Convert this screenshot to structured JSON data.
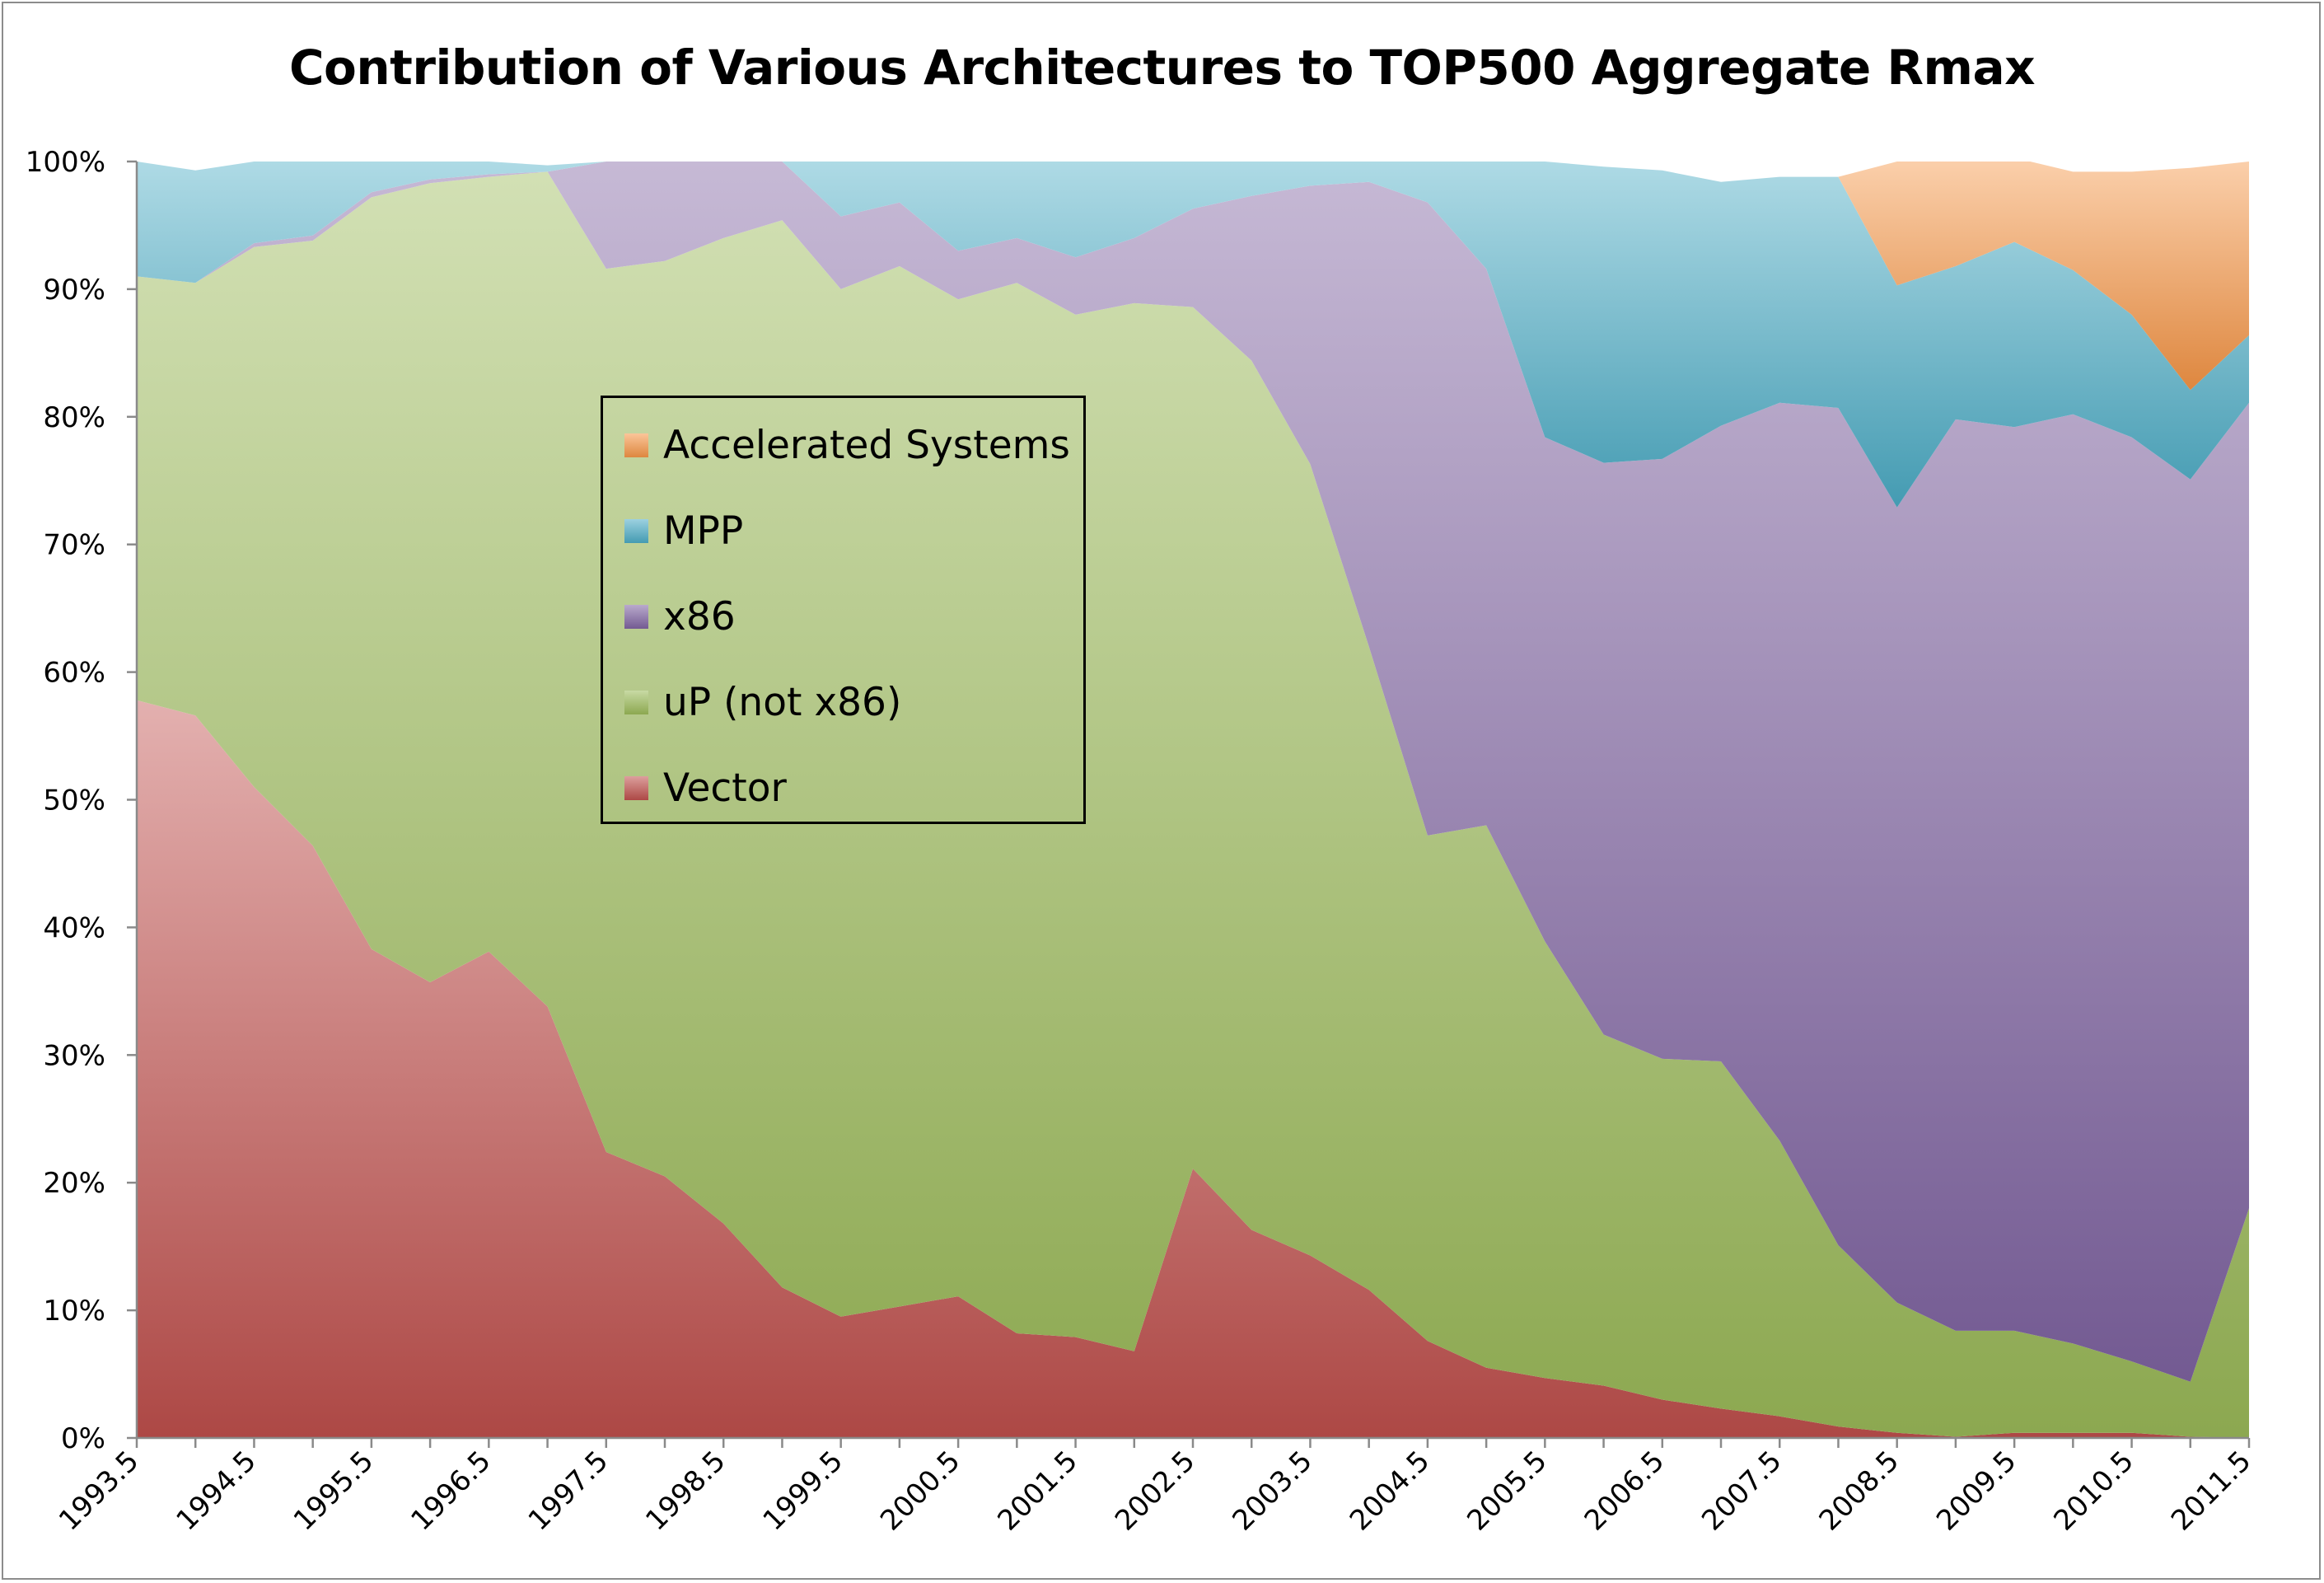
{
  "title": "Contribution of Various Architectures to TOP500 Aggregate Rmax",
  "chart_data": {
    "type": "area",
    "stacked": true,
    "title": "Contribution of Various Architectures to TOP500 Aggregate Rmax",
    "xlabel": "",
    "ylabel": "",
    "ylim": [
      0,
      100
    ],
    "y_unit": "%",
    "grid": false,
    "legend_position": "center-left inside plot",
    "x": [
      1993.5,
      1994,
      1994.5,
      1995,
      1995.5,
      1996,
      1996.5,
      1997,
      1997.5,
      1998,
      1998.5,
      1999,
      1999.5,
      2000,
      2000.5,
      2001,
      2001.5,
      2002,
      2002.5,
      2003,
      2003.5,
      2004,
      2004.5,
      2005,
      2005.5,
      2006,
      2006.5,
      2007,
      2007.5,
      2008,
      2008.5,
      2009,
      2009.5,
      2010,
      2010.5,
      2011,
      2011.5
    ],
    "x_tick_labels": [
      "1993.5",
      "1994.5",
      "1995.5",
      "1996.5",
      "1997.5",
      "1998.5",
      "1999.5",
      "2000.5",
      "2001.5",
      "2002.5",
      "2003.5",
      "2004.5",
      "2005.5",
      "2006.5",
      "2007.5",
      "2008.5",
      "2009.5",
      "2010.5",
      "2011.5"
    ],
    "y_tick_labels": [
      "0%",
      "10%",
      "20%",
      "30%",
      "40%",
      "50%",
      "60%",
      "70%",
      "80%",
      "90%",
      "100%"
    ],
    "series": [
      {
        "name": "Vector",
        "color": "#c0504d",
        "values": [
          57.8,
          56.6,
          51,
          46.4,
          38.3,
          35.7,
          38.1,
          33.8,
          22.4,
          20.5,
          16.8,
          11.8,
          9.5,
          10.3,
          11.1,
          8.2,
          7.9,
          6.8,
          21.1,
          16.3,
          14.3,
          11.6,
          7.6,
          5.5,
          4.7,
          4.1,
          3,
          2.3,
          1.7,
          0.9,
          0.4,
          0.1,
          0.4,
          0.4,
          0.4,
          0.1,
          0
        ]
      },
      {
        "name": "uP (not x86)",
        "color": "#9bbb59",
        "values": [
          33.2,
          33.9,
          42.3,
          47.4,
          58.9,
          62.6,
          60.7,
          65.4,
          69.2,
          71.7,
          77.2,
          83.6,
          80.5,
          81.5,
          78.1,
          82.3,
          80.1,
          82.1,
          67.5,
          68.1,
          62,
          50.4,
          39.6,
          42.5,
          34.2,
          27.5,
          26.7,
          27.2,
          21.6,
          14.2,
          10.2,
          8.3,
          8,
          7,
          5.6,
          4.3,
          18
        ]
      },
      {
        "name": "x86",
        "color": "#8064a2",
        "values": [
          0,
          0,
          0.3,
          0.4,
          0.4,
          0.3,
          0.2,
          0,
          8.4,
          7.8,
          6,
          4.6,
          5.7,
          5,
          3.8,
          3.5,
          4.5,
          5.1,
          7.7,
          12.9,
          21.8,
          36.4,
          49.6,
          43.6,
          39.5,
          44.8,
          47,
          49.8,
          57.8,
          65.6,
          62.3,
          71.4,
          70.8,
          72.8,
          72.4,
          70.7,
          63.1
        ]
      },
      {
        "name": "MPP",
        "color": "#4bacc6",
        "values": [
          9,
          8.8,
          6.4,
          5.8,
          2.4,
          1.4,
          1,
          0.5,
          0,
          0,
          0,
          0,
          4.3,
          3.2,
          7,
          6,
          7.5,
          6,
          3.7,
          2.7,
          1.9,
          1.6,
          3.2,
          8.4,
          21.6,
          23.2,
          22.6,
          19.1,
          17.7,
          18.1,
          17.4,
          12,
          14.5,
          11.3,
          9.6,
          7,
          5.3
        ]
      },
      {
        "name": "Accelerated Systems",
        "color": "#f79646",
        "values": [
          0,
          0,
          0,
          0,
          0,
          0,
          0,
          0,
          0,
          0,
          0,
          0,
          0,
          0,
          0,
          0,
          0,
          0,
          0,
          0,
          0,
          0,
          0,
          0,
          0,
          0,
          0,
          0,
          0,
          0,
          9.7,
          8.5,
          6.6,
          7.7,
          11.2,
          17.4,
          13.6
        ]
      }
    ]
  },
  "legend": {
    "items": [
      {
        "label": "Accelerated Systems",
        "color": "#f79646"
      },
      {
        "label": "MPP",
        "color": "#4bacc6"
      },
      {
        "label": "x86",
        "color": "#8064a2"
      },
      {
        "label": "uP (not x86)",
        "color": "#9bbb59"
      },
      {
        "label": "Vector",
        "color": "#c0504d"
      }
    ]
  }
}
